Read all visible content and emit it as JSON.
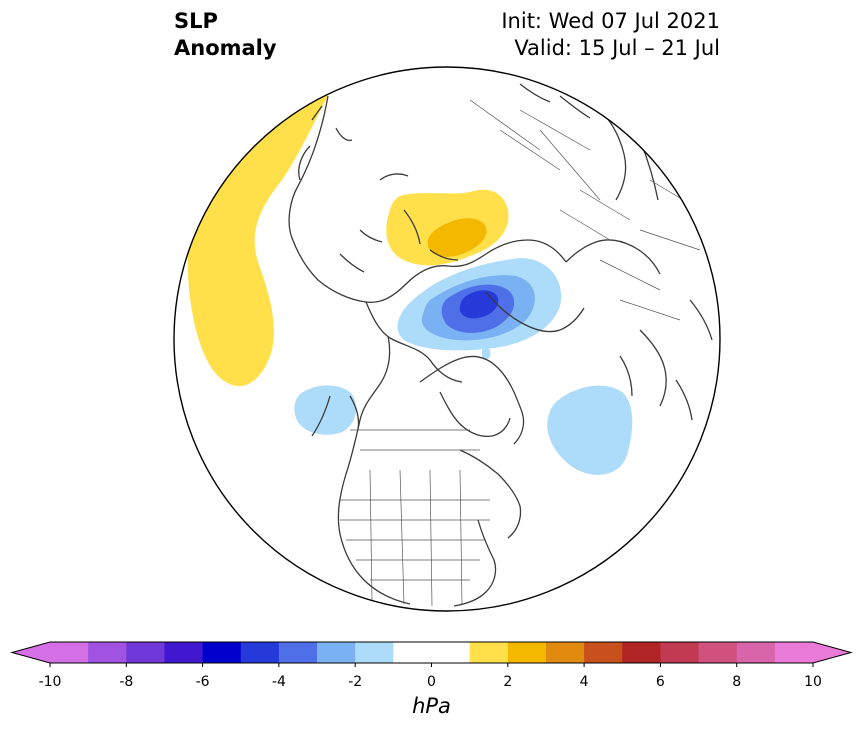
{
  "title": {
    "left_line1": "SLP",
    "left_line2": "Anomaly",
    "right_line1": "Init: Wed 07 Jul 2021",
    "right_line2": "Valid: 15 Jul – 21 Jul"
  },
  "colorbar": {
    "units": "hPa",
    "range": [
      -10,
      10
    ],
    "bin_width": 1,
    "tick_labels": [
      "-10",
      "-8",
      "-6",
      "-4",
      "-2",
      "0",
      "2",
      "4",
      "6",
      "8",
      "10"
    ],
    "colors": [
      "#d56fe5",
      "#9f53e0",
      "#7038d8",
      "#3f18d0",
      "#0000cc",
      "#263ad9",
      "#4f6fe8",
      "#79b1f3",
      "#addcfa",
      "#ffffff",
      "#ffffff",
      "#ffe04a",
      "#f4b800",
      "#e08a10",
      "#c8501c",
      "#b02424",
      "#c23a52",
      "#d0507e",
      "#d865aa",
      "#e97ad8"
    ],
    "extend": "both"
  },
  "map": {
    "projection": "north-polar-stereographic",
    "anomaly_features": [
      {
        "name": "positive-anomaly-north-pacific",
        "level": "1 to 2"
      },
      {
        "name": "positive-anomaly-scandinavia",
        "level": "1 to 2"
      },
      {
        "name": "positive-anomaly-scandinavia-core",
        "level": "2 to 3"
      },
      {
        "name": "negative-anomaly-kara-sea",
        "level": "-1 to -2"
      },
      {
        "name": "negative-anomaly-kara-sea-mid",
        "level": "-2 to -3"
      },
      {
        "name": "negative-anomaly-kara-sea-inner",
        "level": "-3 to -4"
      },
      {
        "name": "negative-anomaly-kara-sea-core",
        "level": "-4 to -5"
      },
      {
        "name": "negative-anomaly-hudson-bay",
        "level": "-1 to -2"
      },
      {
        "name": "negative-anomaly-north-atlantic",
        "level": "-1 to -2"
      }
    ]
  }
}
